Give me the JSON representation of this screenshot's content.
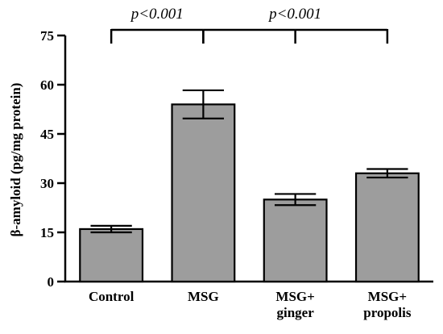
{
  "chart_data": {
    "type": "bar",
    "categories": [
      [
        "Control"
      ],
      [
        "MSG"
      ],
      [
        "MSG+",
        "ginger"
      ],
      [
        "MSG+",
        "propolis"
      ]
    ],
    "values": [
      16,
      54,
      25,
      33
    ],
    "errors": [
      1.0,
      4.3,
      1.7,
      1.3
    ],
    "ylabel": "β-amyloid (pg/mg protein)",
    "ylim": [
      0,
      75
    ],
    "yticks": [
      0,
      15,
      30,
      45,
      60,
      75
    ],
    "bar_color": "#9d9d9d",
    "grid": false,
    "annotations": [
      {
        "text": "p<0.001",
        "from_category": 0,
        "to_categories": [
          1
        ]
      },
      {
        "text": "p<0.001",
        "from_category": 1,
        "to_categories": [
          2,
          3
        ]
      }
    ]
  }
}
